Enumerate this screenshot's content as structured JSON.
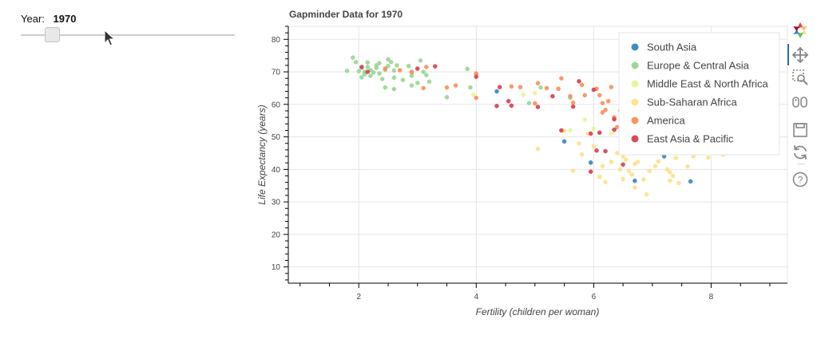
{
  "slider": {
    "label": "Year:",
    "value": "1970",
    "start": 1964,
    "end": 2013,
    "current": 1970
  },
  "colors": {
    "South Asia": "#3288bd",
    "Europe & Central Asia": "#99d594",
    "Middle East & North Africa": "#e6f598",
    "Sub-Saharan Africa": "#fee08b",
    "America": "#fc8d59",
    "East Asia & Pacific": "#d53e4f"
  },
  "toolbar": {
    "icons": [
      "bokeh-logo-icon",
      "pan-icon",
      "box-zoom-icon",
      "wheel-zoom-icon",
      "save-icon",
      "reset-icon",
      "help-icon"
    ]
  },
  "chart_data": {
    "type": "scatter",
    "title": "Gapminder Data for 1970",
    "xlabel": "Fertility (children per woman)",
    "ylabel": "Life Expectancy (years)",
    "xlim": [
      0.8,
      9.3
    ],
    "ylim": [
      5,
      84
    ],
    "x_ticks": [
      2,
      4,
      6,
      8
    ],
    "y_ticks": [
      10,
      20,
      30,
      40,
      50,
      60,
      70,
      80
    ],
    "grid": true,
    "legend_position": "top-right",
    "series": [
      {
        "name": "South Asia",
        "points": [
          [
            4.35,
            64
          ],
          [
            5.5,
            48.6
          ],
          [
            5.95,
            42.1
          ],
          [
            6.7,
            36.5
          ],
          [
            7.2,
            44
          ],
          [
            7.65,
            36.3
          ]
        ]
      },
      {
        "name": "Europe & Central Asia",
        "points": [
          [
            1.8,
            70.3
          ],
          [
            1.9,
            74.4
          ],
          [
            1.95,
            73
          ],
          [
            2.0,
            70.2
          ],
          [
            2.05,
            71.2
          ],
          [
            2.05,
            68.3
          ],
          [
            2.1,
            70
          ],
          [
            2.1,
            69.3
          ],
          [
            2.15,
            72.9
          ],
          [
            2.15,
            71.5
          ],
          [
            2.2,
            70.5
          ],
          [
            2.2,
            68.8
          ],
          [
            2.25,
            69.8
          ],
          [
            2.3,
            71.2
          ],
          [
            2.3,
            72
          ],
          [
            2.35,
            72.7
          ],
          [
            2.35,
            69.5
          ],
          [
            2.4,
            67.8
          ],
          [
            2.45,
            70.6
          ],
          [
            2.45,
            65.2
          ],
          [
            2.5,
            71.8
          ],
          [
            2.5,
            73.8
          ],
          [
            2.55,
            73
          ],
          [
            2.6,
            70.4
          ],
          [
            2.6,
            68.2
          ],
          [
            2.6,
            64.7
          ],
          [
            2.65,
            72
          ],
          [
            2.75,
            67.5
          ],
          [
            2.85,
            71.8
          ],
          [
            2.9,
            69.7
          ],
          [
            2.9,
            68.8
          ],
          [
            2.9,
            65.8
          ],
          [
            3.0,
            66.6
          ],
          [
            3.05,
            73.5
          ],
          [
            3.1,
            70
          ],
          [
            3.15,
            69
          ],
          [
            3.2,
            67
          ],
          [
            3.85,
            70.9
          ],
          [
            3.9,
            65.2
          ],
          [
            3.5,
            62.2
          ],
          [
            4.9,
            60.4
          ],
          [
            5.1,
            65.2
          ],
          [
            5.6,
            62
          ],
          [
            6.45,
            58
          ]
        ]
      },
      {
        "name": "Middle East & North Africa",
        "points": [
          [
            3.95,
            63
          ],
          [
            4.8,
            63
          ],
          [
            5.0,
            63.5
          ],
          [
            5.6,
            52
          ],
          [
            5.85,
            55.3
          ],
          [
            6.0,
            52.5
          ],
          [
            6.3,
            51
          ],
          [
            6.6,
            49
          ],
          [
            7.0,
            56
          ],
          [
            7.2,
            54
          ],
          [
            7.35,
            47
          ]
        ]
      },
      {
        "name": "Sub-Saharan Africa",
        "points": [
          [
            5.05,
            46.3
          ],
          [
            5.5,
            51.8
          ],
          [
            5.65,
            39.6
          ],
          [
            5.75,
            48
          ],
          [
            5.8,
            44.6
          ],
          [
            5.9,
            51
          ],
          [
            6.0,
            47
          ],
          [
            6.1,
            37.7
          ],
          [
            6.15,
            41
          ],
          [
            6.2,
            36.1
          ],
          [
            6.3,
            42.3
          ],
          [
            6.4,
            45
          ],
          [
            6.45,
            40
          ],
          [
            6.5,
            37
          ],
          [
            6.55,
            43
          ],
          [
            6.6,
            39.5
          ],
          [
            6.65,
            38.4
          ],
          [
            6.7,
            41.7
          ],
          [
            6.7,
            34.4
          ],
          [
            6.75,
            42.3
          ],
          [
            6.8,
            45.2
          ],
          [
            6.85,
            36.9
          ],
          [
            6.9,
            32.3
          ],
          [
            6.95,
            39.5
          ],
          [
            7.0,
            45
          ],
          [
            7.05,
            41
          ],
          [
            7.1,
            42.5
          ],
          [
            7.15,
            44.8
          ],
          [
            7.25,
            40
          ],
          [
            7.3,
            39.1
          ],
          [
            7.3,
            36.5
          ],
          [
            7.35,
            38
          ],
          [
            7.4,
            43.5
          ],
          [
            7.45,
            35.8
          ],
          [
            7.6,
            40.9
          ],
          [
            7.7,
            44
          ],
          [
            7.85,
            47.2
          ],
          [
            7.95,
            43.6
          ],
          [
            8.2,
            44.5
          ],
          [
            7.0,
            53
          ],
          [
            6.5,
            44
          ]
        ]
      },
      {
        "name": "America",
        "points": [
          [
            2.45,
            71
          ],
          [
            2.7,
            70.5
          ],
          [
            2.9,
            70
          ],
          [
            3.1,
            65
          ],
          [
            3.15,
            71.5
          ],
          [
            3.5,
            65.2
          ],
          [
            3.65,
            65.8
          ],
          [
            4.0,
            62
          ],
          [
            4.0,
            69.5
          ],
          [
            4.6,
            65.5
          ],
          [
            4.75,
            65.3
          ],
          [
            5.0,
            60.3
          ],
          [
            5.05,
            66.5
          ],
          [
            5.2,
            65
          ],
          [
            5.4,
            64.8
          ],
          [
            5.45,
            68
          ],
          [
            5.6,
            62.5
          ],
          [
            5.65,
            60.5
          ],
          [
            5.8,
            66
          ],
          [
            5.85,
            62.8
          ],
          [
            6.05,
            64.8
          ],
          [
            6.1,
            62.8
          ],
          [
            6.15,
            60.4
          ],
          [
            6.15,
            57.5
          ],
          [
            6.25,
            61
          ],
          [
            6.3,
            65.3
          ],
          [
            6.35,
            56
          ],
          [
            6.4,
            53
          ],
          [
            6.2,
            58.3
          ]
        ]
      },
      {
        "name": "East Asia & Pacific",
        "points": [
          [
            2.05,
            71.5
          ],
          [
            2.15,
            70
          ],
          [
            3.3,
            71.7
          ],
          [
            3.0,
            71
          ],
          [
            4.0,
            68.5
          ],
          [
            4.35,
            59.5
          ],
          [
            4.4,
            65.3
          ],
          [
            4.55,
            61
          ],
          [
            4.6,
            59.6
          ],
          [
            5.05,
            59.2
          ],
          [
            5.3,
            62.5
          ],
          [
            5.45,
            52
          ],
          [
            5.65,
            59.3
          ],
          [
            5.75,
            67.1
          ],
          [
            5.95,
            39.3
          ],
          [
            6.0,
            64.5
          ],
          [
            6.05,
            45.8
          ],
          [
            6.1,
            51.3
          ],
          [
            6.2,
            45.6
          ],
          [
            6.35,
            52.2
          ],
          [
            6.35,
            55.4
          ],
          [
            6.5,
            41.5
          ],
          [
            6.6,
            50.5
          ],
          [
            5.95,
            51
          ]
        ]
      }
    ]
  }
}
